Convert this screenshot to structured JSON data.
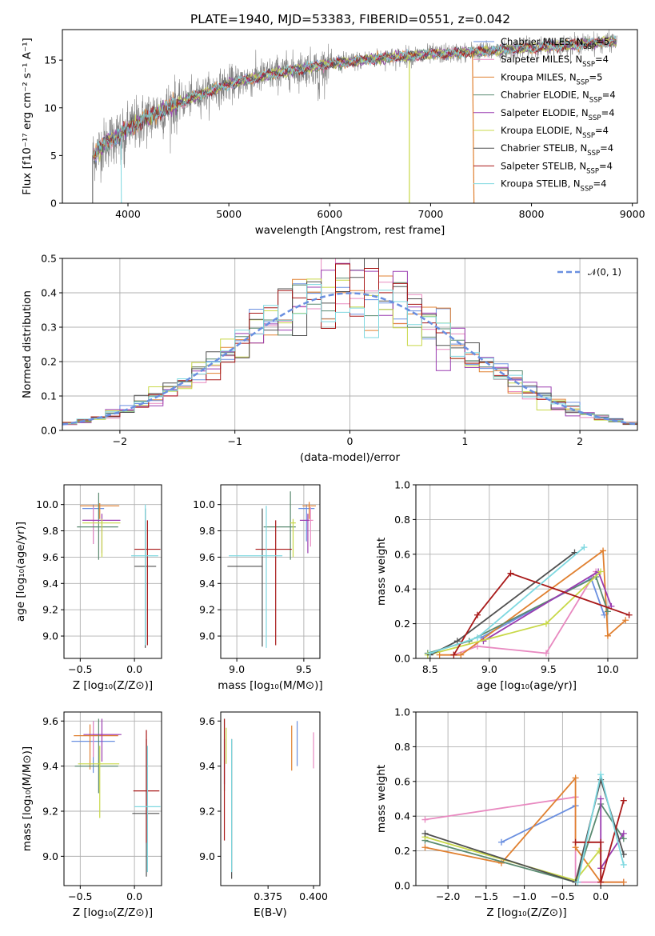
{
  "figure_title": "PLATE=1940, MJD=53383, FIBERID=0551, z=0.042",
  "series_colors": [
    "#6a8fe0",
    "#e889c0",
    "#e08030",
    "#5a8a70",
    "#9a3cb0",
    "#c8d848",
    "#505050",
    "#a81818",
    "#7ed8e0"
  ],
  "chart_data": [
    {
      "id": "spectrum",
      "type": "line",
      "xlabel": "wavelength [Angstrom, rest frame]",
      "ylabel": "Flux [f_λ10^−17 erg cm^−2 s^−1 A^−1]",
      "xlim": [
        3350,
        9050
      ],
      "ylim": [
        0,
        18.2
      ],
      "xticks": [
        4000,
        5000,
        6000,
        7000,
        8000,
        9000
      ],
      "yticks": [
        0,
        5,
        10,
        15
      ],
      "legend_position": "upper right",
      "data_color": "#808080",
      "observed_trend": {
        "x": [
          3650,
          3800,
          4000,
          4200,
          4500,
          5000,
          5500,
          6000,
          6500,
          7000,
          7500,
          8000,
          8500,
          8850
        ],
        "y": [
          5.0,
          6.5,
          7.8,
          9.0,
          10.5,
          12.5,
          13.7,
          14.6,
          15.2,
          15.6,
          15.9,
          16.3,
          16.7,
          17.0
        ]
      },
      "series": [
        {
          "name": "Chabrier MILES",
          "nssp": "5"
        },
        {
          "name": "Salpeter MILES",
          "nssp": "4"
        },
        {
          "name": "Kroupa MILES",
          "nssp": "5"
        },
        {
          "name": "Chabrier ELODIE",
          "nssp": "4"
        },
        {
          "name": "Salpeter ELODIE",
          "nssp": "4"
        },
        {
          "name": "Kroupa ELODIE",
          "nssp": "4"
        },
        {
          "name": "Chabrier STELIB",
          "nssp": "4"
        },
        {
          "name": "Salpeter STELIB",
          "nssp": "4"
        },
        {
          "name": "Kroupa STELIB",
          "nssp": "4"
        }
      ]
    },
    {
      "id": "residuals",
      "type": "histogram",
      "xlabel": "(data-model)/error",
      "ylabel": "Normed distribution",
      "xlim": [
        -2.5,
        2.5
      ],
      "ylim": [
        0,
        0.5
      ],
      "xticks": [
        -2,
        -1,
        0,
        1,
        2
      ],
      "yticks": [
        0.0,
        0.1,
        0.2,
        0.3,
        0.4,
        0.5
      ],
      "bin_width": 0.125,
      "grid": true,
      "legend": "𝒩(0, 1)",
      "legend_position": "upper right",
      "reference_curve": "standard normal (dashed)"
    },
    {
      "id": "age_vs_Z",
      "type": "errorbar",
      "xlabel": "Z [log10(Z/Z⊙)]",
      "ylabel": "age  [log10(age/yr)]",
      "xlim": [
        -0.65,
        0.25
      ],
      "ylim": [
        8.83,
        10.15
      ],
      "xticks": [
        -0.5,
        0.0
      ],
      "yticks": [
        9.0,
        9.2,
        9.4,
        9.6,
        9.8,
        10.0
      ],
      "grid": true,
      "points": [
        {
          "x": -0.38,
          "xerr": [
            0.1,
            0.1
          ],
          "y": 9.97,
          "yerr": [
            0.27,
            0.03
          ]
        },
        {
          "x": -0.38,
          "xerr": [
            0.1,
            0.0
          ],
          "y": 9.88,
          "yerr": [
            0.18,
            0.1
          ]
        },
        {
          "x": -0.32,
          "xerr": [
            0.18,
            0.18
          ],
          "y": 9.99,
          "yerr": [
            0.1,
            0.02
          ]
        },
        {
          "x": -0.33,
          "xerr": [
            0.2,
            0.18
          ],
          "y": 9.83,
          "yerr": [
            0.25,
            0.26
          ]
        },
        {
          "x": -0.3,
          "xerr": [
            0.18,
            0.17
          ],
          "y": 9.88,
          "yerr": [
            0.25,
            0.05
          ]
        },
        {
          "x": -0.3,
          "xerr": [
            0.18,
            0.17
          ],
          "y": 9.86,
          "yerr": [
            0.26,
            0.03
          ]
        },
        {
          "x": 0.1,
          "xerr": [
            0.1,
            0.1
          ],
          "y": 9.53,
          "yerr": [
            0.62,
            0.44
          ]
        },
        {
          "x": 0.12,
          "xerr": [
            0.12,
            0.12
          ],
          "y": 9.66,
          "yerr": [
            0.73,
            0.22
          ]
        },
        {
          "x": 0.1,
          "xerr": [
            0.13,
            0.12
          ],
          "y": 9.61,
          "yerr": [
            0.68,
            0.39
          ]
        }
      ]
    },
    {
      "id": "age_vs_mass",
      "type": "errorbar",
      "xlabel": "mass [log10(M/M⊙)]",
      "ylabel": "",
      "xlim": [
        8.88,
        9.62
      ],
      "ylim": [
        8.83,
        10.15
      ],
      "xticks": [
        9.0,
        9.5
      ],
      "yticks": [
        9.0,
        9.2,
        9.4,
        9.6,
        9.8,
        10.0
      ],
      "grid": true,
      "points": [
        {
          "x": 9.52,
          "xerr": [
            0.06,
            0.06
          ],
          "y": 9.97,
          "yerr": [
            0.25,
            0.03
          ]
        },
        {
          "x": 9.55,
          "xerr": [
            0.02,
            0.02
          ],
          "y": 9.88,
          "yerr": [
            0.2,
            0.1
          ]
        },
        {
          "x": 9.54,
          "xerr": [
            0.05,
            0.05
          ],
          "y": 9.99,
          "yerr": [
            0.1,
            0.03
          ]
        },
        {
          "x": 9.4,
          "xerr": [
            0.2,
            0.04
          ],
          "y": 9.83,
          "yerr": [
            0.25,
            0.27
          ]
        },
        {
          "x": 9.53,
          "xerr": [
            0.06,
            0.01
          ],
          "y": 9.88,
          "yerr": [
            0.25,
            0.05
          ]
        },
        {
          "x": 9.42,
          "xerr": [
            0.02,
            0.02
          ],
          "y": 9.86,
          "yerr": [
            0.26,
            0.03
          ]
        },
        {
          "x": 9.19,
          "xerr": [
            0.26,
            0.0
          ],
          "y": 9.53,
          "yerr": [
            0.61,
            0.44
          ]
        },
        {
          "x": 9.29,
          "xerr": [
            0.15,
            0.12
          ],
          "y": 9.66,
          "yerr": [
            0.73,
            0.22
          ]
        },
        {
          "x": 9.22,
          "xerr": [
            0.28,
            0.12
          ],
          "y": 9.61,
          "yerr": [
            0.7,
            0.38
          ]
        }
      ]
    },
    {
      "id": "weight_vs_age",
      "type": "line",
      "xlabel": "age  [log10(age/yr)]",
      "ylabel": "mass weight",
      "xlim": [
        8.38,
        10.25
      ],
      "ylim": [
        0,
        1.0
      ],
      "xticks": [
        8.5,
        9.0,
        9.5,
        10.0
      ],
      "yticks": [
        0.0,
        0.2,
        0.4,
        0.6,
        0.8,
        1.0
      ],
      "grid": true,
      "series": [
        {
          "x": [
            8.93,
            9.86,
            9.97
          ],
          "y": [
            0.12,
            0.46,
            0.25
          ]
        },
        {
          "x": [
            8.7,
            8.9,
            9.48,
            9.9
          ],
          "y": [
            0.02,
            0.07,
            0.03,
            0.5
          ]
        },
        {
          "x": [
            8.58,
            8.76,
            9.96,
            10.0,
            10.15
          ],
          "y": [
            0.02,
            0.02,
            0.62,
            0.13,
            0.22
          ]
        },
        {
          "x": [
            8.48,
            8.83,
            9.9,
            10.0
          ],
          "y": [
            0.03,
            0.1,
            0.47,
            0.27
          ]
        },
        {
          "x": [
            8.95,
            9.92,
            10.03
          ],
          "y": [
            0.1,
            0.5,
            0.3
          ]
        },
        {
          "x": [
            8.48,
            9.48,
            9.94
          ],
          "y": [
            0.02,
            0.2,
            0.5
          ]
        },
        {
          "x": [
            8.5,
            8.73,
            9.72
          ],
          "y": [
            0.02,
            0.1,
            0.61
          ]
        },
        {
          "x": [
            8.7,
            8.9,
            9.18,
            10.18
          ],
          "y": [
            0.02,
            0.25,
            0.49,
            0.25
          ]
        },
        {
          "x": [
            8.5,
            8.9,
            9.8
          ],
          "y": [
            0.03,
            0.12,
            0.64
          ]
        }
      ]
    },
    {
      "id": "mass_vs_Z",
      "type": "errorbar",
      "xlabel": "Z [log10(Z/Z⊙)]",
      "ylabel": "mass [log10(M/M⊙)]",
      "xlim": [
        -0.65,
        0.25
      ],
      "ylim": [
        8.87,
        9.64
      ],
      "xticks": [
        -0.5,
        0.0
      ],
      "yticks": [
        9.0,
        9.2,
        9.4,
        9.6
      ],
      "grid": true,
      "points": [
        {
          "x": -0.38,
          "xerr": [
            0.2,
            0.2
          ],
          "y": 9.51,
          "yerr": [
            0.14,
            0.09
          ]
        },
        {
          "x": -0.38,
          "xerr": [
            0.0,
            0.24
          ],
          "y": 9.54,
          "yerr": [
            0.1,
            0.06
          ]
        },
        {
          "x": -0.41,
          "xerr": [
            0.15,
            0.26
          ],
          "y": 9.535,
          "yerr": [
            0.15,
            0.05
          ]
        },
        {
          "x": -0.33,
          "xerr": [
            0.22,
            0.18
          ],
          "y": 9.4,
          "yerr": [
            0.12,
            0.21
          ]
        },
        {
          "x": -0.3,
          "xerr": [
            0.17,
            0.18
          ],
          "y": 9.54,
          "yerr": [
            0.12,
            0.07
          ]
        },
        {
          "x": -0.32,
          "xerr": [
            0.2,
            0.18
          ],
          "y": 9.41,
          "yerr": [
            0.24,
            0.08
          ]
        },
        {
          "x": 0.11,
          "xerr": [
            0.13,
            0.12
          ],
          "y": 9.19,
          "yerr": [
            0.28,
            0.33
          ]
        },
        {
          "x": 0.11,
          "xerr": [
            0.12,
            0.12
          ],
          "y": 9.29,
          "yerr": [
            0.23,
            0.27
          ]
        },
        {
          "x": 0.12,
          "xerr": [
            0.12,
            0.12
          ],
          "y": 9.22,
          "yerr": [
            0.29,
            0.27
          ]
        }
      ]
    },
    {
      "id": "mass_vs_ebv",
      "type": "errorbar",
      "xlabel": "E(B-V)",
      "ylabel": "",
      "xlim": [
        0.349,
        0.4035
      ],
      "ylim": [
        8.87,
        9.64
      ],
      "xticks": [
        0.375,
        0.4
      ],
      "yticks": [
        9.0,
        9.2,
        9.4,
        9.6
      ],
      "grid": false,
      "points": [
        {
          "x": 0.391,
          "y": 9.51,
          "yerr": [
            0.11,
            0.09
          ]
        },
        {
          "x": 0.4,
          "y": 9.47,
          "yerr": [
            0.08,
            0.08
          ]
        },
        {
          "x": 0.388,
          "y": 9.48,
          "yerr": [
            0.1,
            0.1
          ]
        },
        {
          "x": 0.351,
          "y": 9.41,
          "yerr": [
            0.12,
            0.2
          ]
        },
        {
          "x": 0.351,
          "y": 9.42,
          "yerr": [
            0.1,
            0.1
          ]
        },
        {
          "x": 0.352,
          "y": 9.49,
          "yerr": [
            0.08,
            0.08
          ]
        },
        {
          "x": 0.355,
          "y": 9.1,
          "yerr": [
            0.2,
            0.42
          ]
        },
        {
          "x": 0.351,
          "y": 9.29,
          "yerr": [
            0.22,
            0.32
          ]
        },
        {
          "x": 0.355,
          "y": 9.21,
          "yerr": [
            0.28,
            0.31
          ]
        }
      ]
    },
    {
      "id": "weight_vs_Z",
      "type": "line",
      "xlabel": "Z [log10(Z/Z⊙)]",
      "ylabel": "mass weight",
      "xlim": [
        -2.42,
        0.48
      ],
      "ylim": [
        0,
        1.0
      ],
      "xticks": [
        -2.0,
        -1.5,
        -1.0,
        -0.5,
        0.0
      ],
      "yticks": [
        0.0,
        0.2,
        0.4,
        0.6,
        0.8,
        1.0
      ],
      "grid": true,
      "series": [
        {
          "x": [
            -1.3,
            -0.33
          ],
          "y": [
            0.25,
            0.46
          ]
        },
        {
          "x": [
            -2.3,
            -0.33,
            -0.33,
            0.3
          ],
          "y": [
            0.38,
            0.51,
            0.02,
            0.02
          ]
        },
        {
          "x": [
            -2.3,
            -1.3,
            -0.33,
            -0.33,
            0.0,
            0.3
          ],
          "y": [
            0.22,
            0.13,
            0.62,
            0.22,
            0.02,
            0.02
          ]
        },
        {
          "x": [
            -2.3,
            -0.33,
            0.0,
            0.3
          ],
          "y": [
            0.26,
            0.02,
            0.47,
            0.27
          ]
        },
        {
          "x": [
            0.0,
            0.0,
            0.3
          ],
          "y": [
            0.5,
            0.1,
            0.3
          ]
        },
        {
          "x": [
            -2.3,
            -0.33,
            -0.02
          ],
          "y": [
            0.28,
            0.03,
            0.2
          ]
        },
        {
          "x": [
            -2.3,
            -0.33,
            0.0,
            0.3
          ],
          "y": [
            0.3,
            0.02,
            0.61,
            0.18
          ]
        },
        {
          "x": [
            -0.33,
            0.0,
            0.0,
            0.3
          ],
          "y": [
            0.25,
            0.25,
            0.02,
            0.49
          ]
        },
        {
          "x": [
            -0.3,
            0.0,
            0.3
          ],
          "y": [
            0.02,
            0.64,
            0.12
          ]
        }
      ]
    }
  ]
}
